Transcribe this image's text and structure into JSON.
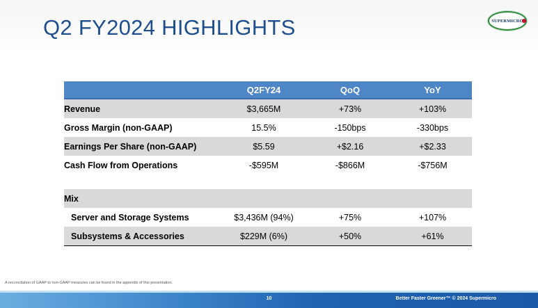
{
  "title": "Q2 FY2024 HIGHLIGHTS",
  "logo": {
    "text": "SUPERMICRO"
  },
  "table": {
    "headers": [
      "",
      "Q2FY24",
      "QoQ",
      "YoY"
    ],
    "rows": [
      {
        "label": "Revenue",
        "q2fy24": "$3,665M",
        "qoq": "+73%",
        "yoy": "+103%"
      },
      {
        "label": "Gross Margin (non-GAAP)",
        "q2fy24": "15.5%",
        "qoq": "-150bps",
        "yoy": "-330bps"
      },
      {
        "label": "Earnings Per Share (non-GAAP)",
        "q2fy24": "$5.59",
        "qoq": "+$2.16",
        "yoy": "+$2.33"
      },
      {
        "label": "Cash Flow from Operations",
        "q2fy24": "-$595M",
        "qoq": "-$866M",
        "yoy": "-$756M"
      }
    ],
    "mix_label": "Mix",
    "mix_rows": [
      {
        "label": "Server and Storage Systems",
        "q2fy24": "$3,436M (94%)",
        "qoq": "+75%",
        "yoy": "+107%"
      },
      {
        "label": "Subsystems & Accessories",
        "q2fy24": "$229M (6%)",
        "qoq": "+50%",
        "yoy": "+61%"
      }
    ]
  },
  "footnote": "A reconciliation of GAAP to non-GAAP measures can be found in the appendix of this presentation.",
  "footer": {
    "page_number": "10",
    "tagline": "Better Faster Greener™  © 2024 Supermicro"
  },
  "colors": {
    "title": "#1f4e8c",
    "header_bg": "#4f86c6",
    "row_shade": "#d9d9d9",
    "footer_band": "#1e62b0"
  }
}
